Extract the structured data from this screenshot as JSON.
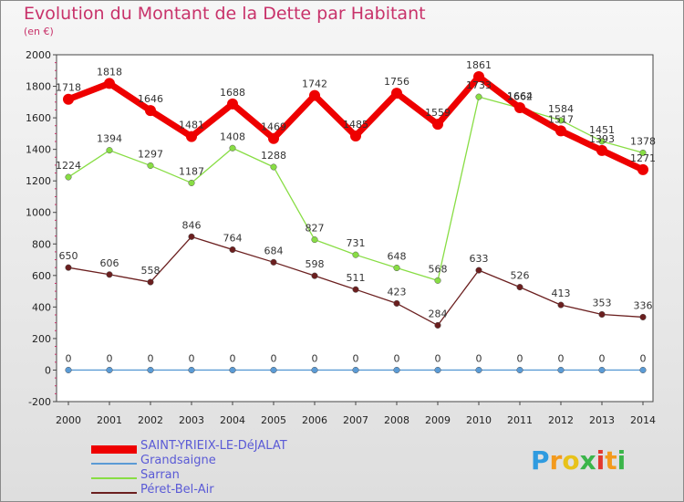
{
  "header": {
    "title": "Evolution du Montant de la Dette par Habitant",
    "subtitle": "(en €)"
  },
  "chart_data": {
    "type": "line",
    "title": "Evolution du Montant de la Dette par Habitant",
    "subtitle": "(en €)",
    "x": [
      2000,
      2001,
      2002,
      2003,
      2004,
      2005,
      2006,
      2007,
      2008,
      2009,
      2010,
      2011,
      2012,
      2013,
      2014
    ],
    "ylim": [
      -200,
      2000
    ],
    "yticks": [
      -200,
      0,
      200,
      400,
      600,
      800,
      1000,
      1200,
      1400,
      1600,
      1800,
      2000
    ],
    "grid": false,
    "legend_position": "bottom-left",
    "series": [
      {
        "name": "SAINT-YRIEIX-LE-DéJALAT",
        "color": "#ee0000",
        "style": "thick",
        "values": [
          1718,
          1818,
          1646,
          1481,
          1688,
          1469,
          1742,
          1485,
          1756,
          1559,
          1861,
          1664,
          1517,
          1393,
          1271
        ]
      },
      {
        "name": "Grandsaigne",
        "color": "#5b9bd5",
        "style": "normal",
        "values": [
          0,
          0,
          0,
          0,
          0,
          0,
          0,
          0,
          0,
          0,
          0,
          0,
          0,
          0,
          0
        ]
      },
      {
        "name": "Sarran",
        "color": "#88dd44",
        "style": "normal",
        "values": [
          1224,
          1394,
          1297,
          1187,
          1408,
          1288,
          827,
          731,
          648,
          568,
          1733,
          1662,
          1584,
          1451,
          1378
        ]
      },
      {
        "name": "Péret-Bel-Air",
        "color": "#6b1f1f",
        "style": "normal",
        "values": [
          650,
          606,
          558,
          846,
          764,
          684,
          598,
          511,
          423,
          284,
          633,
          526,
          413,
          353,
          336
        ]
      }
    ]
  },
  "logo": {
    "letters": [
      "P",
      "r",
      "o",
      "x",
      "i",
      "t",
      "i"
    ],
    "colors": [
      "#2f9be0",
      "#f39a1d",
      "#e8c21a",
      "#3bb54a",
      "#e2382e",
      "#f39a1d",
      "#3bb54a"
    ]
  }
}
